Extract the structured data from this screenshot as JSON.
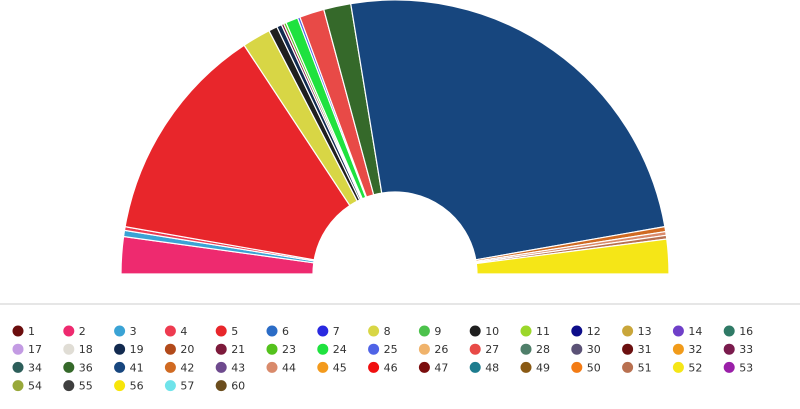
{
  "chart_data": {
    "type": "pie",
    "subtype": "semicircle-parliament",
    "title": "",
    "legend_position": "bottom",
    "series": [
      {
        "name": "1",
        "color": "#6b0d0d",
        "value": 0
      },
      {
        "name": "2",
        "color": "#ee2a6f",
        "value": 3.0
      },
      {
        "name": "3",
        "color": "#3aa3d5",
        "value": 0.5
      },
      {
        "name": "4",
        "color": "#ee3b50",
        "value": 0.3
      },
      {
        "name": "5",
        "color": "#e8262b",
        "value": 17.8
      },
      {
        "name": "6",
        "color": "#2b6cc6",
        "value": 0
      },
      {
        "name": "7",
        "color": "#2929e0",
        "value": 0
      },
      {
        "name": "8",
        "color": "#d8d645",
        "value": 2.3
      },
      {
        "name": "9",
        "color": "#4cc24c",
        "value": 0
      },
      {
        "name": "10",
        "color": "#1f1f1f",
        "value": 0.7
      },
      {
        "name": "11",
        "color": "#9bd72a",
        "value": 0
      },
      {
        "name": "12",
        "color": "#0d0d8a",
        "value": 0
      },
      {
        "name": "13",
        "color": "#c9a63a",
        "value": 0
      },
      {
        "name": "14",
        "color": "#6f3fc8",
        "value": 0
      },
      {
        "name": "16",
        "color": "#2f7a66",
        "value": 0
      },
      {
        "name": "17",
        "color": "#c39be3",
        "value": 0
      },
      {
        "name": "18",
        "color": "#e0ddd5",
        "value": 0
      },
      {
        "name": "19",
        "color": "#122a4f",
        "value": 0.4
      },
      {
        "name": "20",
        "color": "#b24a1a",
        "value": 0
      },
      {
        "name": "21",
        "color": "#7d1a3b",
        "value": 0.2
      },
      {
        "name": "23",
        "color": "#54c21d",
        "value": 0.2
      },
      {
        "name": "24",
        "color": "#1fe23f",
        "value": 1.0
      },
      {
        "name": "25",
        "color": "#4f63e6",
        "value": 0.2
      },
      {
        "name": "26",
        "color": "#f0b36b",
        "value": 0
      },
      {
        "name": "27",
        "color": "#e84a47",
        "value": 2.0
      },
      {
        "name": "28",
        "color": "#4f7f6a",
        "value": 0
      },
      {
        "name": "30",
        "color": "#5b5276",
        "value": 0
      },
      {
        "name": "31",
        "color": "#6b1010",
        "value": 0
      },
      {
        "name": "32",
        "color": "#f19b1a",
        "value": 0
      },
      {
        "name": "33",
        "color": "#7a1b4d",
        "value": 0
      },
      {
        "name": "34",
        "color": "#2d5e5a",
        "value": 0
      },
      {
        "name": "36",
        "color": "#35692a",
        "value": 2.2
      },
      {
        "name": "41",
        "color": "#17467e",
        "value": 34.1
      },
      {
        "name": "42",
        "color": "#d06a22",
        "value": 0.4
      },
      {
        "name": "43",
        "color": "#6e4a8e",
        "value": 0
      },
      {
        "name": "44",
        "color": "#d98a6b",
        "value": 0.3
      },
      {
        "name": "45",
        "color": "#f39a1c",
        "value": 0
      },
      {
        "name": "46",
        "color": "#f00f0f",
        "value": 0
      },
      {
        "name": "47",
        "color": "#7a0d0d",
        "value": 0
      },
      {
        "name": "48",
        "color": "#1d7c8e",
        "value": 0
      },
      {
        "name": "49",
        "color": "#8a5a14",
        "value": 0
      },
      {
        "name": "50",
        "color": "#f37b14",
        "value": 0
      },
      {
        "name": "51",
        "color": "#b87050",
        "value": 0.3
      },
      {
        "name": "52",
        "color": "#f5e617",
        "value": 2.8
      },
      {
        "name": "53",
        "color": "#9a1fa8",
        "value": 0
      },
      {
        "name": "54",
        "color": "#98a83a",
        "value": 0
      },
      {
        "name": "55",
        "color": "#3f3f3f",
        "value": 0
      },
      {
        "name": "56",
        "color": "#f7e50a",
        "value": 0
      },
      {
        "name": "57",
        "color": "#6fe3ea",
        "value": 0
      },
      {
        "name": "60",
        "color": "#6b4d1d",
        "value": 0
      }
    ]
  }
}
